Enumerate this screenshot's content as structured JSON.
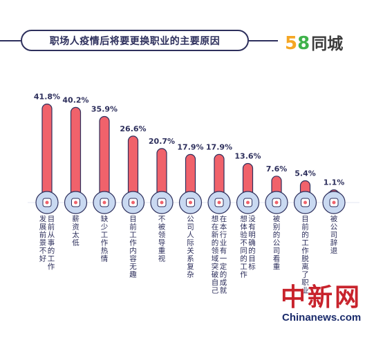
{
  "title": "职场人疫情后将要更换职业的主要原因",
  "logo": {
    "num1": "5",
    "num2": "8",
    "name": "同城"
  },
  "watermark": {
    "cn": "中新网",
    "en": "Chinanews.com"
  },
  "colors": {
    "bar": "#f0626b",
    "bar_outline": "#2d2f5c",
    "icon_bg": "#c9d9f1",
    "text": "#2d2f5c"
  },
  "chart_data": {
    "type": "bar",
    "title": "职场人疫情后将要更换职业的主要原因",
    "categories": [
      "目前从事的工作发展前景不好",
      "薪资太低",
      "缺少工作热情",
      "目前工作内容无趣",
      "不被领导重视",
      "公司人际关系复杂",
      "想在新的领域突破自己在本行业有一定的成就",
      "想体验不同的工作没有明确的目标",
      "被别的公司看重",
      "目前的工作脱离了职业",
      "被公司辞退"
    ],
    "values": [
      41.8,
      40.2,
      35.9,
      26.6,
      20.7,
      17.9,
      17.9,
      13.6,
      7.6,
      5.4,
      1.1
    ],
    "value_labels": [
      "41.8%",
      "40.2%",
      "35.9%",
      "26.6%",
      "20.7%",
      "17.9%",
      "17.9%",
      "13.6%",
      "7.6%",
      "5.4%",
      "1.1%"
    ],
    "label_lines": [
      [
        "发展前景不好",
        "目前从事的工作"
      ],
      [
        "薪资太低"
      ],
      [
        "缺少工作热情"
      ],
      [
        "目前工作内容无趣"
      ],
      [
        "不被领导重视"
      ],
      [
        "公司人际关系复杂"
      ],
      [
        "想在新的领域突破自己",
        "在本行业有一定的成就"
      ],
      [
        "想体验不同的工作",
        "没有明确的目标"
      ],
      [
        "被别的公司看重"
      ],
      [
        "目前的工作脱离了职业"
      ],
      [
        "被公司辞退"
      ]
    ],
    "icons": [
      "rocket-icon",
      "money-bag-icon",
      "heart-hand-icon",
      "head-lock-icon",
      "boss-icon",
      "team-icon",
      "diamond-icon",
      "target-icon",
      "thumbs-up-icon",
      "laptop-icon",
      "group-icon"
    ],
    "ylim": [
      0,
      45
    ]
  }
}
